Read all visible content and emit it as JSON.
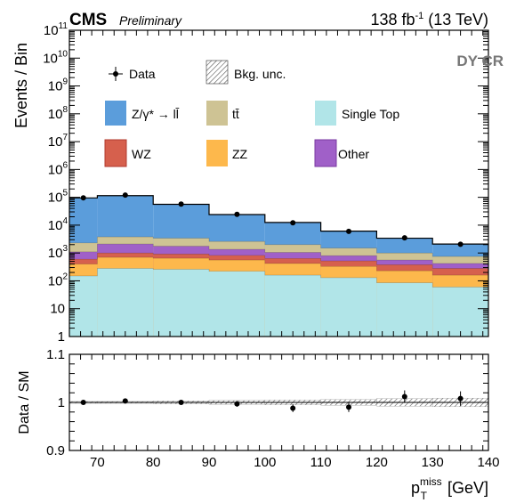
{
  "header": {
    "cms": "CMS",
    "preliminary": "Preliminary",
    "lumi": "138 fb",
    "lumi_exp": "-1",
    "energy": " (13 TeV)",
    "region": "DY CR"
  },
  "legend": [
    {
      "key": "data",
      "label": "Data"
    },
    {
      "key": "unc",
      "label": "Bkg. unc."
    },
    {
      "key": "dy",
      "label": "Z/γ* → ll̄",
      "color": "#5b9ddb"
    },
    {
      "key": "tt",
      "label": "tt̄",
      "color": "#cec394"
    },
    {
      "key": "st",
      "label": "Single Top",
      "color": "#b1e5e8"
    },
    {
      "key": "wz",
      "label": "WZ",
      "color": "#d6604d"
    },
    {
      "key": "zz",
      "label": "ZZ",
      "color": "#fdb84c"
    },
    {
      "key": "other",
      "label": "Other",
      "color": "#a060c8"
    }
  ],
  "chart_data": {
    "type": "bar",
    "x_edges": [
      65,
      70,
      80,
      90,
      100,
      110,
      120,
      130,
      140
    ],
    "x_centers": [
      67.5,
      75,
      85,
      95,
      105,
      115,
      125,
      135
    ],
    "xlim": [
      65,
      140
    ],
    "xlabel_main": "p",
    "xlabel_sub": "T",
    "xlabel_sup": "miss",
    "xlabel_unit": " [GeV]",
    "x_ticks": [
      70,
      80,
      90,
      100,
      110,
      120,
      130,
      140
    ],
    "top": {
      "ylabel": "Events / Bin",
      "yscale": "log",
      "ylim": [
        1,
        100000000000
      ],
      "y_ticks": [
        {
          "v": 1,
          "base": "1",
          "exp": ""
        },
        {
          "v": 10,
          "base": "10",
          "exp": ""
        },
        {
          "v": 100,
          "base": "10",
          "exp": "2"
        },
        {
          "v": 1000,
          "base": "10",
          "exp": "3"
        },
        {
          "v": 10000,
          "base": "10",
          "exp": "4"
        },
        {
          "v": 100000,
          "base": "10",
          "exp": "5"
        },
        {
          "v": 1000000,
          "base": "10",
          "exp": "6"
        },
        {
          "v": 10000000,
          "base": "10",
          "exp": "7"
        },
        {
          "v": 100000000,
          "base": "10",
          "exp": "8"
        },
        {
          "v": 1000000000,
          "base": "10",
          "exp": "9"
        },
        {
          "v": 10000000000,
          "base": "10",
          "exp": "10"
        },
        {
          "v": 100000000000,
          "base": "10",
          "exp": "11"
        }
      ],
      "stack_cumulative": [
        {
          "name": "Single Top",
          "color": "#b1e5e8",
          "values": [
            150,
            280,
            260,
            220,
            160,
            130,
            85,
            60
          ]
        },
        {
          "name": "ZZ",
          "color": "#fdb84c",
          "values": [
            400,
            700,
            650,
            560,
            420,
            330,
            230,
            160
          ]
        },
        {
          "name": "WZ",
          "color": "#d6604d",
          "values": [
            600,
            1000,
            920,
            820,
            640,
            520,
            380,
            280
          ]
        },
        {
          "name": "Other",
          "color": "#a060c8",
          "values": [
            1100,
            2100,
            1750,
            1350,
            1050,
            800,
            560,
            420
          ]
        },
        {
          "name": "tt̄",
          "color": "#cec394",
          "values": [
            2300,
            3800,
            3400,
            2600,
            2000,
            1500,
            1000,
            750
          ]
        },
        {
          "name": "Z/γ* → ll̄",
          "color": "#5b9ddb",
          "values": [
            95000,
            115000,
            56000,
            24000,
            12500,
            6100,
            3400,
            2100
          ]
        }
      ],
      "data": [
        96000,
        120000,
        57000,
        24500,
        12200,
        6000,
        3500,
        2050
      ]
    },
    "ratio": {
      "ylabel": "Data / SM",
      "ylim": [
        0.9,
        1.1
      ],
      "y_ticks": [
        {
          "v": 0.9,
          "label": "0.9"
        },
        {
          "v": 1.0,
          "label": "1"
        },
        {
          "v": 1.1,
          "label": "1.1"
        }
      ],
      "values": [
        1.0,
        1.003,
        1.0,
        0.997,
        0.988,
        0.99,
        1.012,
        1.008
      ],
      "errors": [
        0.003,
        0.003,
        0.004,
        0.006,
        0.008,
        0.01,
        0.013,
        0.015
      ],
      "band": [
        0.002,
        0.002,
        0.003,
        0.004,
        0.005,
        0.006,
        0.008,
        0.009
      ]
    }
  }
}
